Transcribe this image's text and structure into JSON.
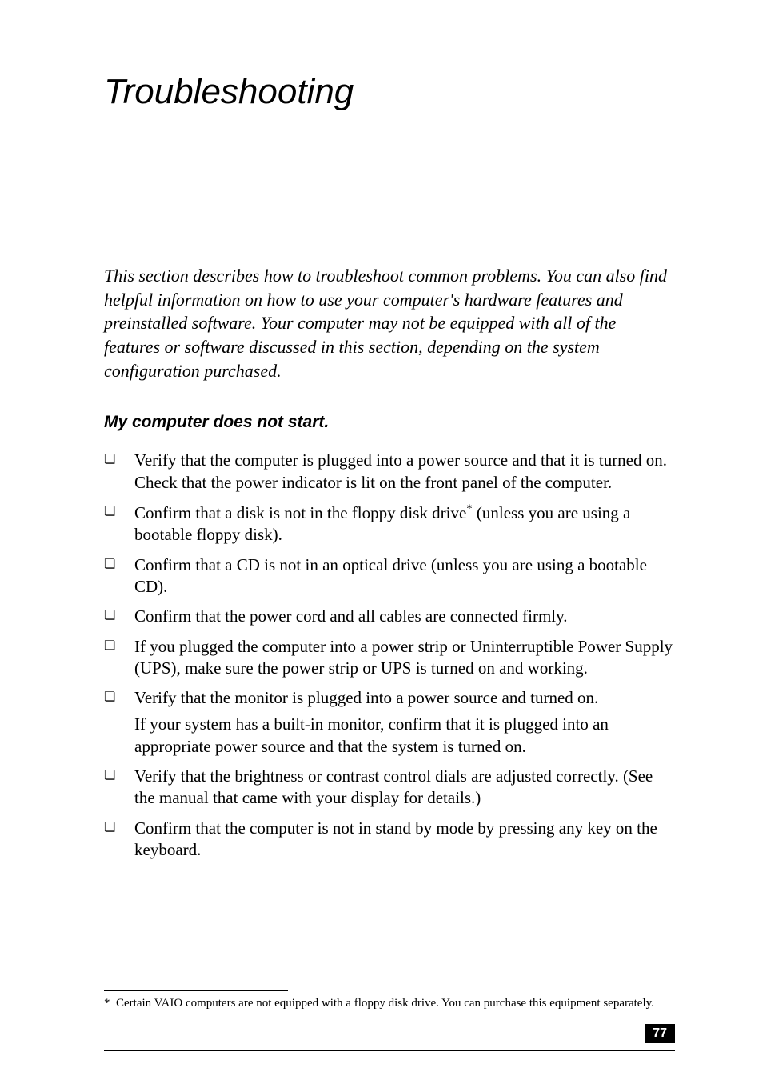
{
  "chapter_title": "Troubleshooting",
  "intro": "This section describes how to troubleshoot common problems. You can also find helpful information on how to use your computer's hardware features and preinstalled software. Your computer may not be equipped with all of the features or software discussed in this section, depending on the system configuration purchased.",
  "section_heading": "My computer does not start.",
  "bullets": [
    {
      "text": "Verify that the computer is plugged into a power source and that it is turned on. Check that the power indicator is lit on the front panel of the computer."
    },
    {
      "pre": "Confirm that a disk is not in the floppy disk drive",
      "sup": "*",
      "post": " (unless you are using a bootable floppy disk)."
    },
    {
      "text": "Confirm that a CD is not in an optical drive (unless you are using a bootable CD)."
    },
    {
      "text": "Confirm that the power cord and all cables are connected firmly."
    },
    {
      "text": "If you plugged the computer into a power strip or Uninterruptible Power Supply (UPS), make sure the power strip or UPS is turned on and working."
    },
    {
      "text": "Verify that the monitor is plugged into a power source and turned on.",
      "sub": "If your system has a built-in monitor, confirm that it is plugged into an appropriate power source and that the system is turned on."
    },
    {
      "text": "Verify that the brightness or contrast control dials are adjusted correctly. (See the manual that came with your display for details.)"
    },
    {
      "text": "Confirm that the computer is not in stand by mode by pressing any key on the keyboard."
    }
  ],
  "footnote_marker": "*",
  "footnote_text": "Certain VAIO computers are not equipped with a floppy disk drive. You can purchase this equipment separately.",
  "page_number": "77",
  "bullet_glyph": "❏"
}
